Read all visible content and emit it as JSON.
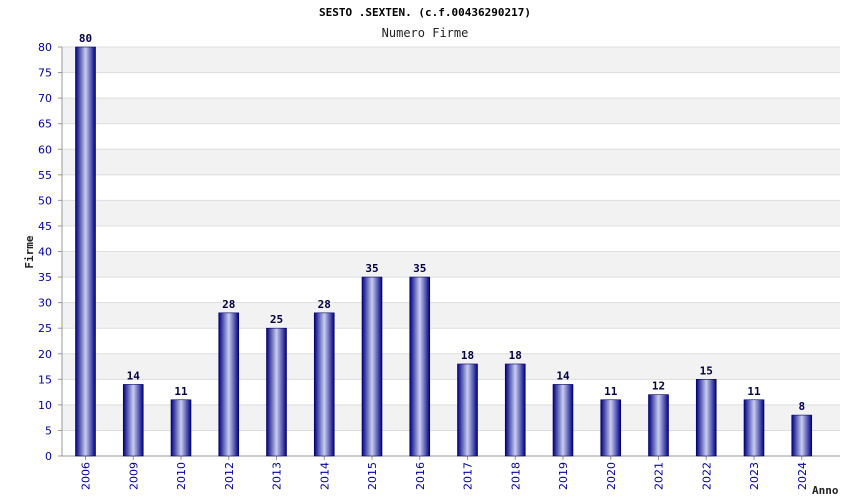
{
  "chart_data": {
    "type": "bar",
    "title": "SESTO .SEXTEN. (c.f.00436290217)",
    "subtitle": "Numero Firme",
    "xlabel": "Anno",
    "ylabel": "Firme",
    "categories": [
      "2006",
      "2009",
      "2010",
      "2012",
      "2013",
      "2014",
      "2015",
      "2016",
      "2017",
      "2018",
      "2019",
      "2020",
      "2021",
      "2022",
      "2023",
      "2024"
    ],
    "values": [
      80,
      14,
      11,
      28,
      25,
      28,
      35,
      35,
      18,
      18,
      14,
      11,
      12,
      15,
      11,
      8
    ],
    "ylim": [
      0,
      80
    ],
    "ytick_step": 5,
    "grid": true,
    "colors": {
      "bar_dark": "#000080",
      "bar_light": "#c8cdf0",
      "band": "#f2f2f2",
      "tick_text": "#0000a0"
    }
  }
}
